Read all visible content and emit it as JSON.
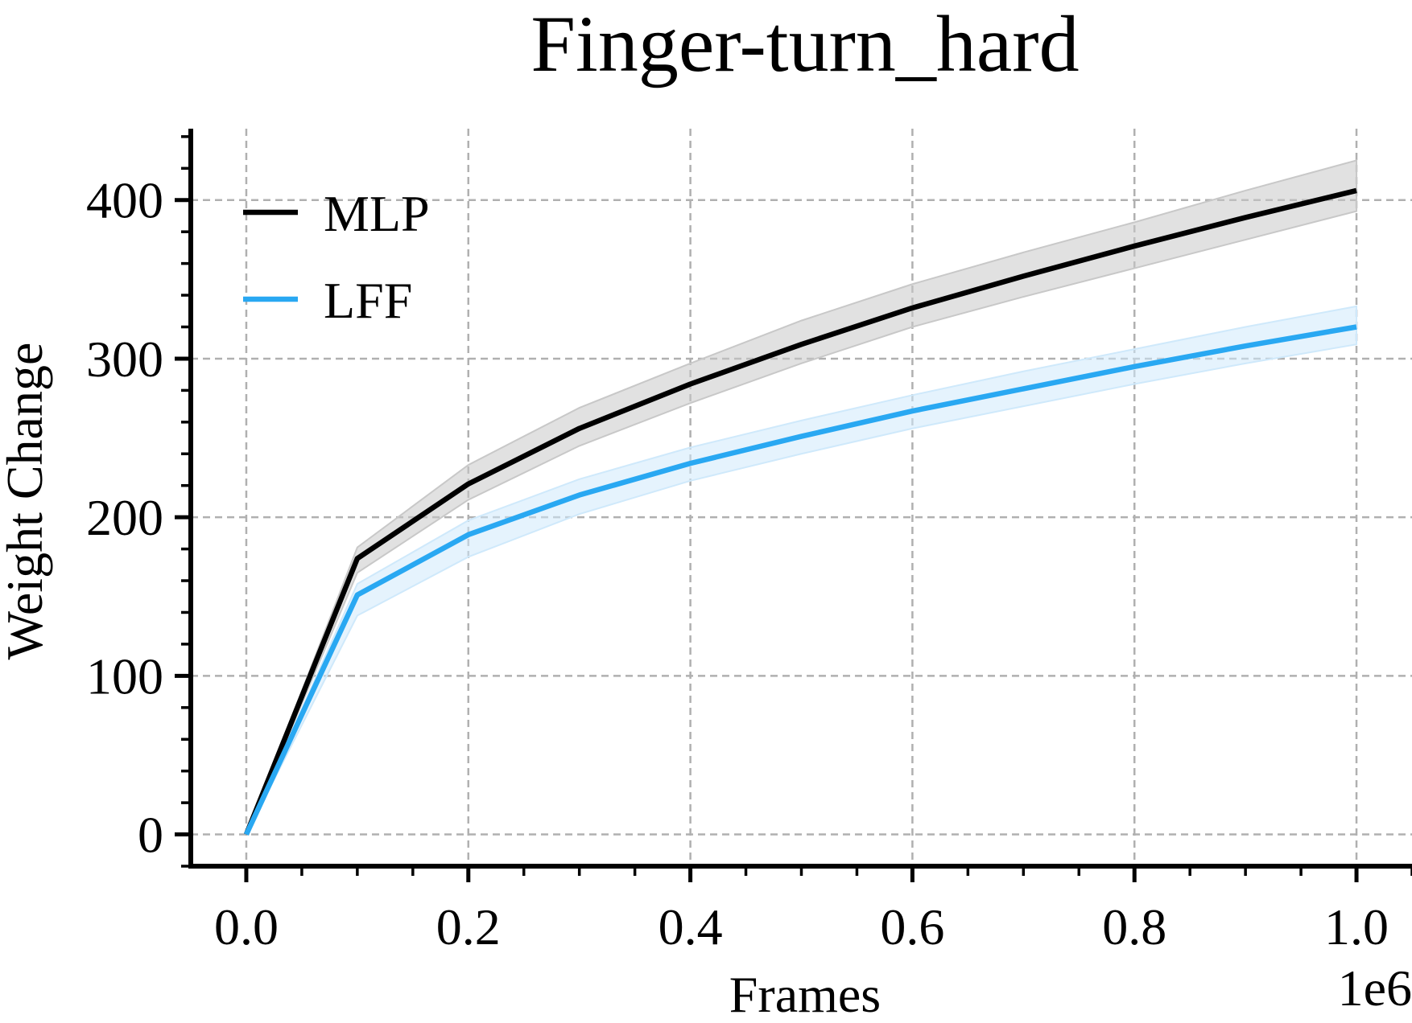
{
  "chart_data": {
    "type": "line",
    "title": "Finger-turn_hard",
    "xlabel": "Frames",
    "ylabel": "Weight Change",
    "x_offset_label": "1e6",
    "x": [
      0,
      100000,
      200000,
      300000,
      400000,
      500000,
      600000,
      700000,
      800000,
      900000,
      1000000
    ],
    "xlim": [
      -50000,
      1050000
    ],
    "ylim": [
      -20,
      445
    ],
    "xticks": [
      0,
      200000,
      400000,
      600000,
      800000,
      1000000
    ],
    "xtick_labels": [
      "0.0",
      "0.2",
      "0.4",
      "0.6",
      "0.8",
      "1.0"
    ],
    "yticks": [
      0,
      100,
      200,
      300,
      400
    ],
    "ytick_labels": [
      "0",
      "100",
      "200",
      "300",
      "400"
    ],
    "grid": true,
    "legend_position": "upper-left",
    "series": [
      {
        "name": "MLP",
        "color": "#000000",
        "band_color": "#c8c8c8",
        "values": [
          0,
          174,
          221,
          256,
          284,
          309,
          332,
          352,
          371,
          389,
          406
        ],
        "lower": [
          0,
          165,
          211,
          245,
          272,
          297,
          320,
          339,
          357,
          375,
          393
        ],
        "upper": [
          0,
          181,
          233,
          269,
          297,
          324,
          347,
          367,
          386,
          406,
          425
        ]
      },
      {
        "name": "LFF",
        "color": "#29a8f2",
        "band_color": "#cfe9fb",
        "values": [
          0,
          151,
          189,
          214,
          234,
          251,
          267,
          281,
          295,
          308,
          320
        ],
        "lower": [
          0,
          138,
          175,
          202,
          223,
          240,
          256,
          270,
          284,
          297,
          309
        ],
        "upper": [
          0,
          158,
          198,
          224,
          244,
          261,
          277,
          292,
          306,
          320,
          333
        ]
      }
    ]
  }
}
